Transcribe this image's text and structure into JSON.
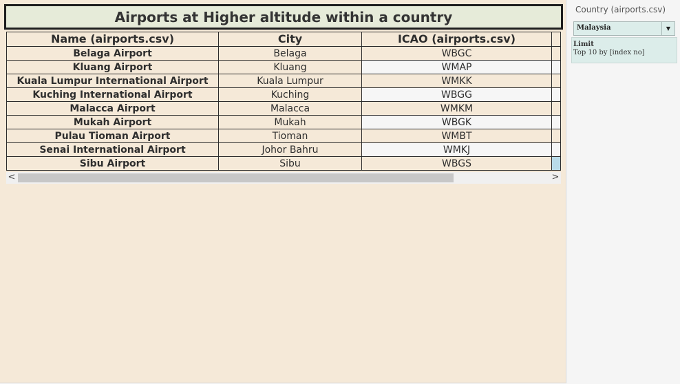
{
  "dashboard": {
    "title": "Airports at Higher altitude within a country",
    "table": {
      "columns": [
        "Name (airports.csv)",
        "City",
        "ICAO (airports.csv)"
      ],
      "rows": [
        {
          "name": "Belaga Airport",
          "city": "Belaga",
          "icao": "WBGC"
        },
        {
          "name": "Kluang Airport",
          "city": "Kluang",
          "icao": "WMAP"
        },
        {
          "name": "Kuala Lumpur International Airport",
          "city": "Kuala Lumpur",
          "icao": "WMKK"
        },
        {
          "name": "Kuching International Airport",
          "city": "Kuching",
          "icao": "WBGG"
        },
        {
          "name": "Malacca Airport",
          "city": "Malacca",
          "icao": "WMKM"
        },
        {
          "name": "Mukah Airport",
          "city": "Mukah",
          "icao": "WBGK"
        },
        {
          "name": "Pulau Tioman Airport",
          "city": "Tioman",
          "icao": "WMBT"
        },
        {
          "name": "Senai International Airport",
          "city": "Johor Bahru",
          "icao": "WMKJ"
        },
        {
          "name": "Sibu Airport",
          "city": "Sibu",
          "icao": "WBGS"
        }
      ]
    },
    "scrollbar": {
      "left_arrow": "<",
      "right_arrow": ">"
    }
  },
  "filter": {
    "title": "Country (airports.csv)",
    "selected": "Malaysia",
    "caret_icon": "chevron-down-icon",
    "limit_title": "Limit",
    "limit_desc": "Top 10 by [index no]"
  },
  "colors": {
    "dashboard_bg": "#f5e9d8",
    "title_bg": "#e6ebd9",
    "filter_bg": "#dcedea",
    "selection": "#b9dbe8"
  }
}
